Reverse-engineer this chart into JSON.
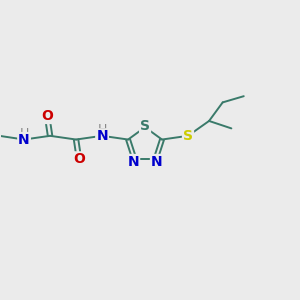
{
  "bg_color": "#ebebeb",
  "bond_color": "#3a7a6a",
  "S_yellow_color": "#cccc00",
  "N_color": "#0000cc",
  "O_color": "#cc0000",
  "H_color": "#888888",
  "ring_S_color": "#3a7a6a",
  "font_size": 10,
  "bond_width": 1.4,
  "fig_size": [
    3.0,
    3.0
  ],
  "dpi": 100,
  "xlim": [
    0,
    12
  ],
  "ylim": [
    0,
    10
  ]
}
